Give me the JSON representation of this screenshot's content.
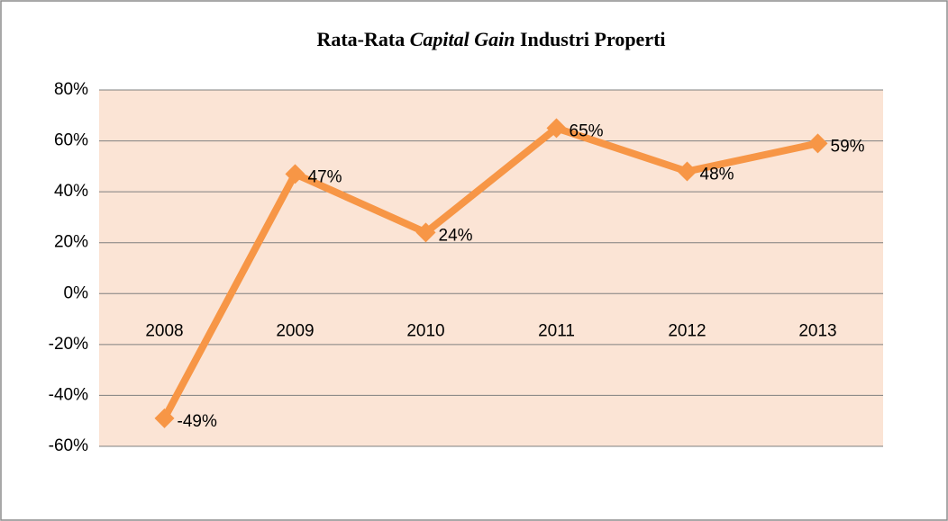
{
  "chart_data": {
    "type": "line",
    "title": [
      {
        "text": "Rata-Rata"
      },
      {
        "text": "Capital Gain",
        "italic": true
      },
      {
        "text": "Industri Properti"
      }
    ],
    "categories": [
      "2008",
      "2009",
      "2010",
      "2011",
      "2012",
      "2013"
    ],
    "series": [
      {
        "color": "#f79646",
        "values": [
          -49,
          47,
          24,
          65,
          48,
          59
        ],
        "value_labels": [
          "-49%",
          "47%",
          "24%",
          "65%",
          "48%",
          "59%"
        ]
      }
    ],
    "ylim": [
      -60,
      80
    ],
    "yticks": [
      {
        "value": -60,
        "label": "-60%"
      },
      {
        "value": -40,
        "label": "-40%"
      },
      {
        "value": -20,
        "label": "-20%"
      },
      {
        "value": 0,
        "label": "0%"
      },
      {
        "value": 20,
        "label": "20%"
      },
      {
        "value": 40,
        "label": "40%"
      },
      {
        "value": 60,
        "label": "60%"
      },
      {
        "value": 80,
        "label": "80%"
      }
    ],
    "grid": true,
    "plot_background": "#fbe4d5"
  }
}
